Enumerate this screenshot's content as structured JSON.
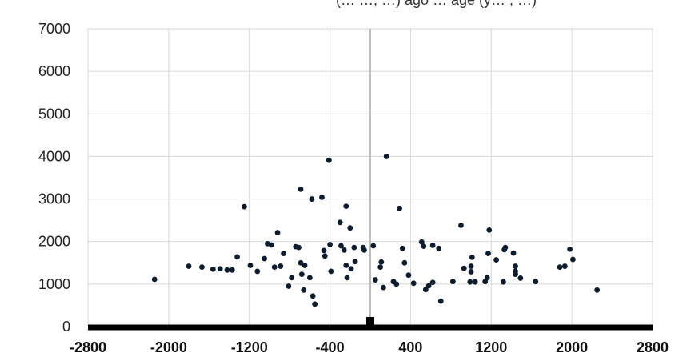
{
  "chart_data": {
    "type": "scatter",
    "title_fragment": "(… …, …) ago … age (y… , …)",
    "xlim": [
      -2800,
      2800
    ],
    "ylim": [
      0,
      7000
    ],
    "x_ticks": [
      -2800,
      -2000,
      -1200,
      -400,
      400,
      1200,
      2000,
      2800
    ],
    "x_tick_labels": [
      "-2800",
      "-2000",
      "-1200",
      "-400",
      "400",
      "1200",
      "2000",
      "2800"
    ],
    "y_ticks": [
      0,
      1000,
      2000,
      3000,
      4000,
      5000,
      6000,
      7000
    ],
    "y_tick_labels": [
      "0",
      "1000",
      "2000",
      "3000",
      "4000",
      "5000",
      "6000",
      "7000"
    ],
    "grid": true,
    "reference_line_x": 0,
    "colors": {
      "points": "#0d1b2e",
      "grid": "#d9d9d9",
      "axis": "#000000",
      "ref_line": "#bdbdbd"
    },
    "points": [
      {
        "x": -2140,
        "y": 1110
      },
      {
        "x": -1800,
        "y": 1420
      },
      {
        "x": -1670,
        "y": 1400
      },
      {
        "x": -1560,
        "y": 1350
      },
      {
        "x": -1490,
        "y": 1360
      },
      {
        "x": -1420,
        "y": 1330
      },
      {
        "x": -1370,
        "y": 1330
      },
      {
        "x": -1320,
        "y": 1640
      },
      {
        "x": -1250,
        "y": 2820
      },
      {
        "x": -1190,
        "y": 1440
      },
      {
        "x": -1120,
        "y": 1300
      },
      {
        "x": -1050,
        "y": 1600
      },
      {
        "x": -1020,
        "y": 1950
      },
      {
        "x": -980,
        "y": 1920
      },
      {
        "x": -950,
        "y": 1400
      },
      {
        "x": -920,
        "y": 2210
      },
      {
        "x": -890,
        "y": 1420
      },
      {
        "x": -860,
        "y": 1720
      },
      {
        "x": -810,
        "y": 950
      },
      {
        "x": -780,
        "y": 1150
      },
      {
        "x": -740,
        "y": 1880
      },
      {
        "x": -710,
        "y": 1860
      },
      {
        "x": -690,
        "y": 3230
      },
      {
        "x": -690,
        "y": 1500
      },
      {
        "x": -680,
        "y": 1230
      },
      {
        "x": -660,
        "y": 860
      },
      {
        "x": -650,
        "y": 1440
      },
      {
        "x": -600,
        "y": 1150
      },
      {
        "x": -580,
        "y": 3000
      },
      {
        "x": -570,
        "y": 720
      },
      {
        "x": -550,
        "y": 530
      },
      {
        "x": -480,
        "y": 3040
      },
      {
        "x": -460,
        "y": 1790
      },
      {
        "x": -450,
        "y": 1660
      },
      {
        "x": -410,
        "y": 3910
      },
      {
        "x": -400,
        "y": 1930
      },
      {
        "x": -390,
        "y": 1300
      },
      {
        "x": -300,
        "y": 2450
      },
      {
        "x": -290,
        "y": 1900
      },
      {
        "x": -260,
        "y": 1800
      },
      {
        "x": -240,
        "y": 2830
      },
      {
        "x": -240,
        "y": 1440
      },
      {
        "x": -230,
        "y": 1150
      },
      {
        "x": -200,
        "y": 2320
      },
      {
        "x": -190,
        "y": 1360
      },
      {
        "x": -160,
        "y": 1860
      },
      {
        "x": -150,
        "y": 1530
      },
      {
        "x": -70,
        "y": 1860
      },
      {
        "x": -60,
        "y": 1800
      },
      {
        "x": 30,
        "y": 1900
      },
      {
        "x": 50,
        "y": 1100
      },
      {
        "x": 100,
        "y": 1400
      },
      {
        "x": 110,
        "y": 1520
      },
      {
        "x": 130,
        "y": 920
      },
      {
        "x": 160,
        "y": 4000
      },
      {
        "x": 230,
        "y": 1060
      },
      {
        "x": 260,
        "y": 1000
      },
      {
        "x": 290,
        "y": 2780
      },
      {
        "x": 320,
        "y": 1840
      },
      {
        "x": 340,
        "y": 1500
      },
      {
        "x": 380,
        "y": 1210
      },
      {
        "x": 430,
        "y": 1020
      },
      {
        "x": 510,
        "y": 1990
      },
      {
        "x": 530,
        "y": 1890
      },
      {
        "x": 550,
        "y": 870
      },
      {
        "x": 580,
        "y": 960
      },
      {
        "x": 620,
        "y": 1910
      },
      {
        "x": 620,
        "y": 1040
      },
      {
        "x": 680,
        "y": 1840
      },
      {
        "x": 700,
        "y": 600
      },
      {
        "x": 820,
        "y": 1060
      },
      {
        "x": 900,
        "y": 2380
      },
      {
        "x": 930,
        "y": 1370
      },
      {
        "x": 990,
        "y": 1050
      },
      {
        "x": 1000,
        "y": 1290
      },
      {
        "x": 1000,
        "y": 1420
      },
      {
        "x": 1010,
        "y": 1630
      },
      {
        "x": 1040,
        "y": 1050
      },
      {
        "x": 1140,
        "y": 1060
      },
      {
        "x": 1160,
        "y": 1150
      },
      {
        "x": 1170,
        "y": 1720
      },
      {
        "x": 1180,
        "y": 2270
      },
      {
        "x": 1250,
        "y": 1570
      },
      {
        "x": 1320,
        "y": 1050
      },
      {
        "x": 1330,
        "y": 1810
      },
      {
        "x": 1340,
        "y": 1860
      },
      {
        "x": 1420,
        "y": 1730
      },
      {
        "x": 1440,
        "y": 1300
      },
      {
        "x": 1440,
        "y": 1230
      },
      {
        "x": 1440,
        "y": 1420
      },
      {
        "x": 1490,
        "y": 1140
      },
      {
        "x": 1640,
        "y": 1060
      },
      {
        "x": 1880,
        "y": 1400
      },
      {
        "x": 1930,
        "y": 1420
      },
      {
        "x": 1980,
        "y": 1820
      },
      {
        "x": 2010,
        "y": 1580
      },
      {
        "x": 2250,
        "y": 860
      }
    ]
  }
}
